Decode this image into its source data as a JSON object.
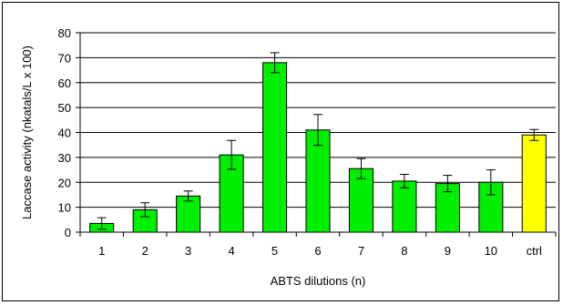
{
  "chart_data": {
    "type": "bar",
    "xlabel": "ABTS dilutions (n)",
    "ylabel": "Laccase activity (nkatals/L x 100)",
    "ylim": [
      0,
      80
    ],
    "yticks": [
      0,
      10,
      20,
      30,
      40,
      50,
      60,
      70,
      80
    ],
    "grid": true,
    "legend": "none",
    "categories": [
      "1",
      "2",
      "3",
      "4",
      "5",
      "6",
      "7",
      "8",
      "9",
      "10",
      "ctrl"
    ],
    "values": [
      3.5,
      9,
      14.5,
      31,
      68,
      41,
      25.5,
      20.5,
      19.5,
      20,
      39
    ],
    "errors": [
      2.3,
      2.8,
      2.0,
      5.8,
      4.0,
      6.2,
      4.0,
      2.7,
      3.3,
      5.0,
      2.2
    ],
    "colors": [
      "#00ee00",
      "#00ee00",
      "#00ee00",
      "#00ee00",
      "#00ee00",
      "#00ee00",
      "#00ee00",
      "#00ee00",
      "#00ee00",
      "#00ee00",
      "#ffff00"
    ],
    "bar_border_color": "#000000",
    "gridline_color": "#000000"
  }
}
